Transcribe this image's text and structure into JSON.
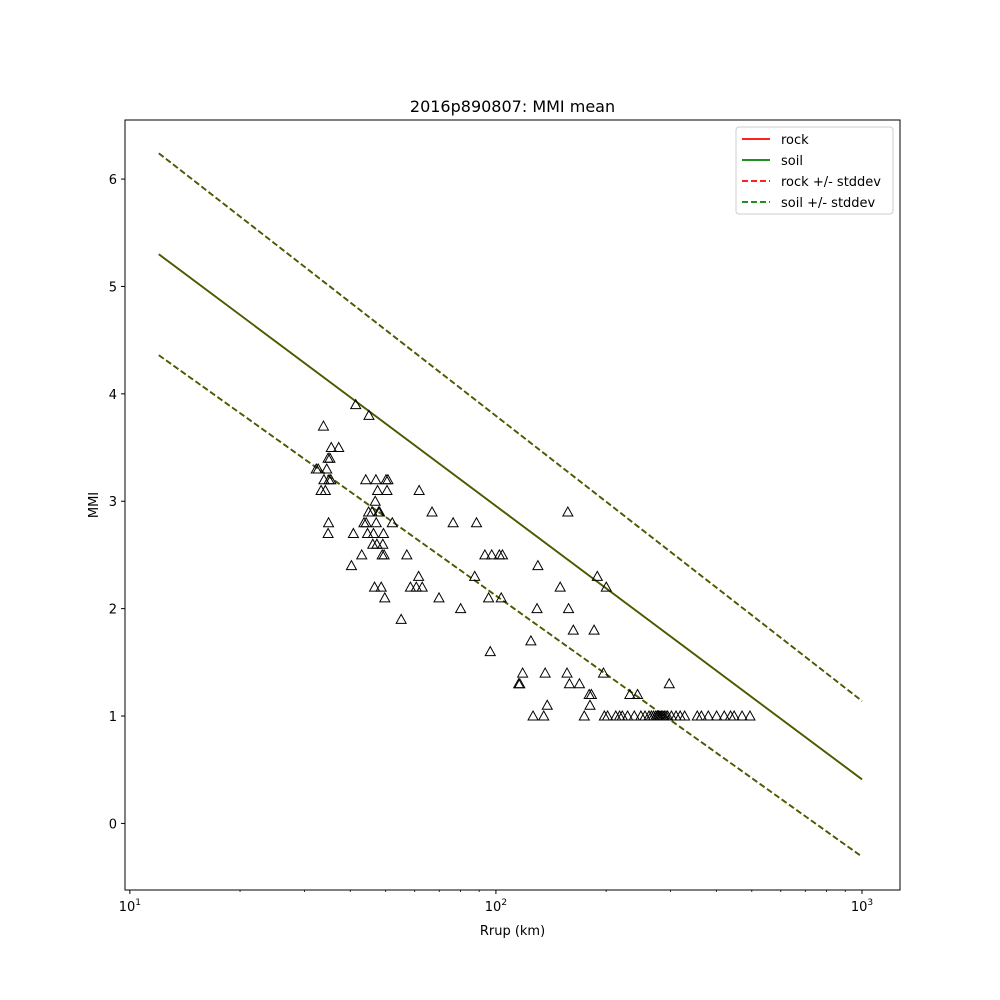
{
  "chart_data": {
    "type": "scatter",
    "title": "2016p890807: MMI mean",
    "xlabel": "Rrup (km)",
    "ylabel": "MMI",
    "xscale": "log",
    "xlim": [
      9.7,
      1270
    ],
    "ylim": [
      -0.62,
      6.55
    ],
    "yticks": [
      0,
      1,
      2,
      3,
      4,
      5,
      6
    ],
    "xticks": [
      {
        "value": 10,
        "base": "10",
        "exp": "1"
      },
      {
        "value": 100,
        "base": "10",
        "exp": "2"
      },
      {
        "value": 1000,
        "base": "10",
        "exp": "3"
      }
    ],
    "grid": false,
    "legend_position": "top-right",
    "colors": {
      "rock": "#ff0000",
      "soil": "#008000",
      "mixed": "#407f00",
      "points": "#000000"
    },
    "legend": [
      {
        "label": "rock",
        "color": "#ff0000",
        "style": "solid"
      },
      {
        "label": "soil",
        "color": "#008000",
        "style": "solid"
      },
      {
        "label": "rock +/- stddev",
        "color": "#ff0000",
        "style": "dashed"
      },
      {
        "label": "soil +/- stddev",
        "color": "#008000",
        "style": "dashed"
      }
    ],
    "series": [
      {
        "name": "rock",
        "style": "solid",
        "x": [
          12,
          1000
        ],
        "y": [
          5.3,
          0.41
        ]
      },
      {
        "name": "soil",
        "style": "solid",
        "x": [
          12,
          1000
        ],
        "y": [
          5.3,
          0.41
        ]
      },
      {
        "name": "rock +/- stddev",
        "style": "dashed",
        "x": [
          12,
          1000
        ],
        "y": [
          6.24,
          1.14
        ]
      },
      {
        "name": "rock +/- stddev",
        "style": "dashed",
        "x": [
          12,
          1000
        ],
        "y": [
          4.36,
          -0.31
        ]
      },
      {
        "name": "soil +/- stddev",
        "style": "dashed",
        "x": [
          12,
          1000
        ],
        "y": [
          6.24,
          1.14
        ]
      },
      {
        "name": "soil +/- stddev",
        "style": "dashed",
        "x": [
          12,
          1000
        ],
        "y": [
          4.36,
          -0.31
        ]
      }
    ],
    "observations": [
      [
        32.3,
        3.3
      ],
      [
        32.7,
        3.3
      ],
      [
        33.3,
        3.1
      ],
      [
        33.8,
        3.7
      ],
      [
        33.9,
        3.2
      ],
      [
        34.2,
        3.1
      ],
      [
        34.5,
        3.3
      ],
      [
        34.8,
        3.4
      ],
      [
        35,
        3.2
      ],
      [
        35.2,
        3.4
      ],
      [
        35.4,
        3.2
      ],
      [
        35.5,
        3.5
      ],
      [
        34.9,
        2.8
      ],
      [
        34.8,
        2.7
      ],
      [
        37.2,
        3.5
      ],
      [
        40.3,
        2.4
      ],
      [
        40.8,
        2.7
      ],
      [
        41.4,
        3.9
      ],
      [
        43,
        2.5
      ],
      [
        43.6,
        2.8
      ],
      [
        44.1,
        3.2
      ],
      [
        44.2,
        2.8
      ],
      [
        44.6,
        2.7
      ],
      [
        44.9,
        2.9
      ],
      [
        45,
        3.8
      ],
      [
        45.9,
        2.9
      ],
      [
        46.1,
        2.6
      ],
      [
        46.3,
        2.7
      ],
      [
        46.6,
        2.2
      ],
      [
        47,
        3.2
      ],
      [
        46.8,
        3
      ],
      [
        47.1,
        2.8
      ],
      [
        47.3,
        2.6
      ],
      [
        47.5,
        3.1
      ],
      [
        47.8,
        2.9
      ],
      [
        48.1,
        2.9
      ],
      [
        48.6,
        2.2
      ],
      [
        48.9,
        2.5
      ],
      [
        49.1,
        2.6
      ],
      [
        49.3,
        2.7
      ],
      [
        49.5,
        2.5
      ],
      [
        49.7,
        2.1
      ],
      [
        50.1,
        3.2
      ],
      [
        50.4,
        3.1
      ],
      [
        50.7,
        3.2
      ],
      [
        52.1,
        2.8
      ],
      [
        55.1,
        1.9
      ],
      [
        57.1,
        2.5
      ],
      [
        58.4,
        2.2
      ],
      [
        60.6,
        2.2
      ],
      [
        61.5,
        2.3
      ],
      [
        61.7,
        3.1
      ],
      [
        62.9,
        2.2
      ],
      [
        66.9,
        2.9
      ],
      [
        69.9,
        2.1
      ],
      [
        76.4,
        2.8
      ],
      [
        80.1,
        2
      ],
      [
        87.5,
        2.3
      ],
      [
        88.5,
        2.8
      ],
      [
        93.3,
        2.5
      ],
      [
        95.5,
        2.1
      ],
      [
        96.5,
        1.6
      ],
      [
        97.4,
        2.5
      ],
      [
        102.2,
        2.5
      ],
      [
        103.4,
        2.1
      ],
      [
        104.2,
        2.5
      ],
      [
        115.4,
        1.3
      ],
      [
        116.2,
        1.3
      ],
      [
        118.3,
        1.4
      ],
      [
        124.6,
        1.7
      ],
      [
        126.3,
        1
      ],
      [
        129.5,
        2
      ],
      [
        130.2,
        2.4
      ],
      [
        135.1,
        1
      ],
      [
        136.3,
        1.4
      ],
      [
        138.1,
        1.1
      ],
      [
        149.8,
        2.2
      ],
      [
        156.4,
        1.4
      ],
      [
        157.2,
        2.9
      ],
      [
        157.9,
        2
      ],
      [
        158.8,
        1.3
      ],
      [
        162.7,
        1.8
      ],
      [
        169.1,
        1.3
      ],
      [
        174.3,
        1
      ],
      [
        179.8,
        1.2
      ],
      [
        180.7,
        1.1
      ],
      [
        182.3,
        1.2
      ],
      [
        185.4,
        1.8
      ],
      [
        189.2,
        2.3
      ],
      [
        196.7,
        1.4
      ],
      [
        197.8,
        1
      ],
      [
        200.2,
        2.2
      ],
      [
        201.8,
        1
      ],
      [
        212.5,
        1
      ],
      [
        217.7,
        1
      ],
      [
        221.4,
        1
      ],
      [
        228.9,
        1
      ],
      [
        232.2,
        1.2
      ],
      [
        238.8,
        1
      ],
      [
        243.7,
        1.2
      ],
      [
        248.9,
        1
      ],
      [
        255.4,
        1
      ],
      [
        261.9,
        1
      ],
      [
        265.8,
        1
      ],
      [
        269.5,
        1
      ],
      [
        273.2,
        1
      ],
      [
        275.9,
        1
      ],
      [
        278.1,
        1
      ],
      [
        280.6,
        1
      ],
      [
        283.1,
        1
      ],
      [
        285.8,
        1
      ],
      [
        288.4,
        1
      ],
      [
        291.5,
        1
      ],
      [
        294.5,
        1
      ],
      [
        297.5,
        1.3
      ],
      [
        301.6,
        1
      ],
      [
        310.4,
        1
      ],
      [
        318.6,
        1
      ],
      [
        327.7,
        1
      ],
      [
        354.8,
        1
      ],
      [
        364.1,
        1
      ],
      [
        380.3,
        1
      ],
      [
        400.7,
        1
      ],
      [
        420.5,
        1
      ],
      [
        437.4,
        1
      ],
      [
        447.4,
        1
      ],
      [
        470.3,
        1
      ],
      [
        494.2,
        1
      ]
    ]
  }
}
